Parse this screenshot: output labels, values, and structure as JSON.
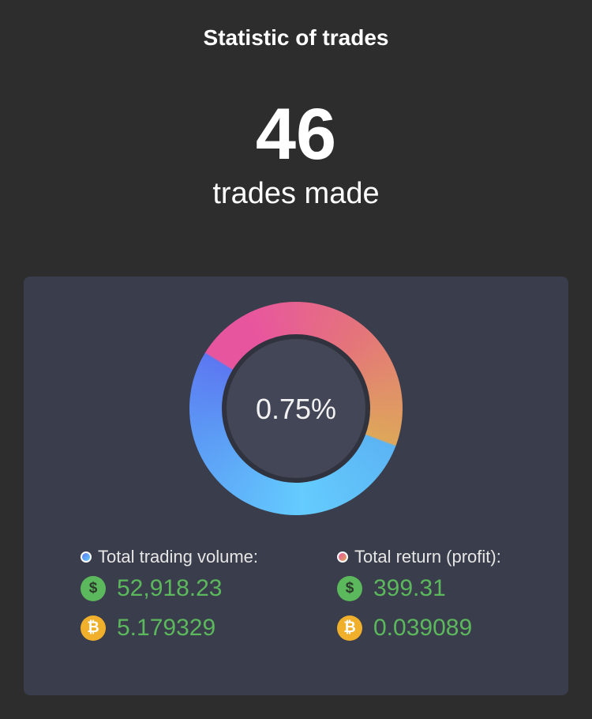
{
  "header": {
    "title": "Statistic of trades"
  },
  "summary": {
    "count": "46",
    "label": "trades made"
  },
  "card": {
    "center_label": "0.75%",
    "columns": [
      {
        "legend": "Total trading volume:",
        "rows": [
          {
            "icon": "$",
            "value": "52,918.23"
          },
          {
            "icon": "₿",
            "value": "5.179329"
          }
        ]
      },
      {
        "legend": "Total return (profit):",
        "rows": [
          {
            "icon": "$",
            "value": "399.31"
          },
          {
            "icon": "₿",
            "value": "0.039089"
          }
        ]
      }
    ]
  }
}
